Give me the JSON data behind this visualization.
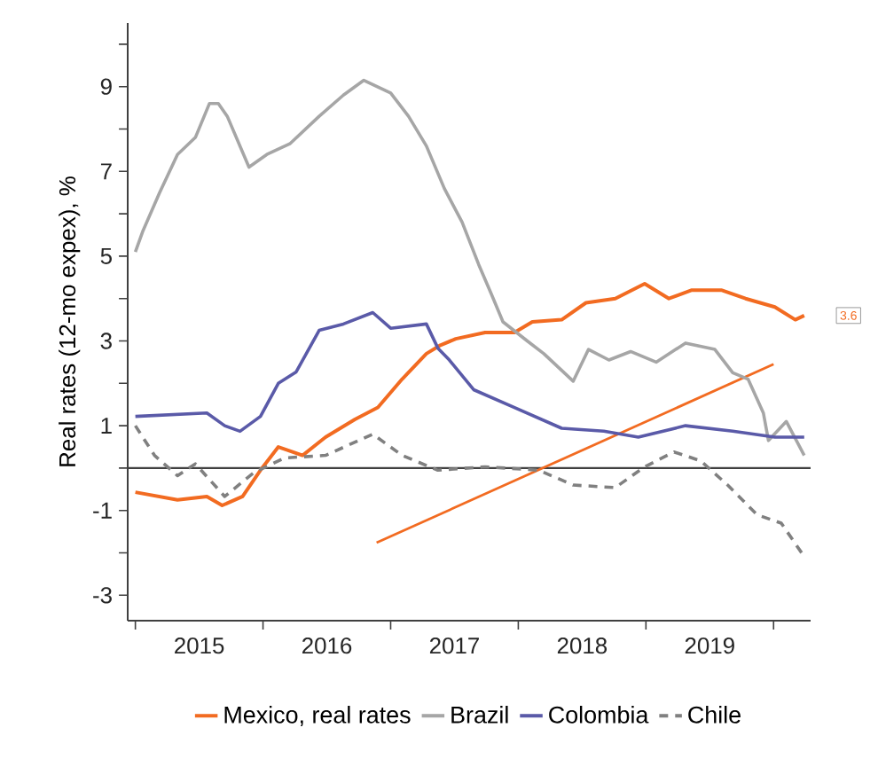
{
  "chart_data": {
    "type": "line",
    "ylabel": "Real rates (12-mo expex), %",
    "xlim": [
      2014.94,
      2020.29
    ],
    "ylim": [
      -3.6,
      10.5
    ],
    "xticks": [
      {
        "value": 2015,
        "label": null
      },
      {
        "value": 2015.5,
        "label": "2015"
      },
      {
        "value": 2016,
        "label": null
      },
      {
        "value": 2016.5,
        "label": "2016"
      },
      {
        "value": 2017,
        "label": null
      },
      {
        "value": 2017.5,
        "label": "2017"
      },
      {
        "value": 2018,
        "label": null
      },
      {
        "value": 2018.5,
        "label": "2018"
      },
      {
        "value": 2019,
        "label": null
      },
      {
        "value": 2019.5,
        "label": "2019"
      },
      {
        "value": 2020,
        "label": null
      }
    ],
    "yticks": [
      -3,
      {
        "value": -2,
        "label": null
      },
      -1,
      {
        "value": 0,
        "label": null
      },
      1,
      {
        "value": 2,
        "label": null
      },
      3,
      {
        "value": 4,
        "label": null
      },
      5,
      {
        "value": 6,
        "label": null
      },
      7,
      {
        "value": 8,
        "label": null
      },
      9,
      {
        "value": 10,
        "label": null
      }
    ],
    "marker": "none",
    "legend": "bottom",
    "ref_lines": [
      {
        "axis": "y",
        "value": 0,
        "color": "#404040"
      }
    ],
    "annotations": [
      {
        "text": "3.6",
        "x": 2020.24,
        "y": 3.6
      }
    ],
    "series": [
      {
        "name": "Mexico, real rates",
        "color": "#f26b21",
        "x": [
          2015.0,
          2015.33,
          2015.56,
          2015.68,
          2015.84,
          2015.98,
          2016.12,
          2016.31,
          2016.49,
          2016.72,
          2016.9,
          2017.09,
          2017.28,
          2017.39,
          2017.51,
          2017.74,
          2017.97,
          2018.11,
          2018.34,
          2018.53,
          2018.76,
          2018.99,
          2019.18,
          2019.36,
          2019.59,
          2019.78,
          2020.01,
          2020.17,
          2020.24
        ],
        "values": [
          -0.57,
          -0.75,
          -0.67,
          -0.88,
          -0.67,
          -0.05,
          0.5,
          0.3,
          0.73,
          1.15,
          1.43,
          2.1,
          2.7,
          2.9,
          3.05,
          3.2,
          3.2,
          3.45,
          3.5,
          3.9,
          4.0,
          4.35,
          4.0,
          4.2,
          4.2,
          4.0,
          3.8,
          3.5,
          3.6
        ]
      },
      {
        "name": "Brazil",
        "color": "#a6a6a6",
        "x": [
          2015.0,
          2015.06,
          2015.19,
          2015.33,
          2015.47,
          2015.58,
          2015.65,
          2015.72,
          2015.89,
          2016.03,
          2016.21,
          2016.44,
          2016.63,
          2016.79,
          2017.0,
          2017.14,
          2017.28,
          2017.42,
          2017.56,
          2017.69,
          2017.79,
          2017.88,
          2018.07,
          2018.2,
          2018.43,
          2018.55,
          2018.71,
          2018.88,
          2019.08,
          2019.31,
          2019.54,
          2019.68,
          2019.8,
          2019.92,
          2019.96,
          2020.1,
          2020.24
        ],
        "values": [
          5.1,
          5.6,
          6.5,
          7.4,
          7.8,
          8.6,
          8.6,
          8.3,
          7.1,
          7.4,
          7.65,
          8.3,
          8.8,
          9.15,
          8.85,
          8.3,
          7.6,
          6.6,
          5.8,
          4.8,
          4.1,
          3.45,
          3.0,
          2.7,
          2.05,
          2.8,
          2.55,
          2.75,
          2.5,
          2.95,
          2.8,
          2.25,
          2.1,
          1.3,
          0.65,
          1.1,
          0.3
        ]
      },
      {
        "name": "Colombia",
        "color": "#5a5aa8",
        "x": [
          2015.0,
          2015.56,
          2015.7,
          2015.82,
          2015.98,
          2016.12,
          2016.26,
          2016.44,
          2016.63,
          2016.86,
          2017.0,
          2017.28,
          2017.37,
          2017.46,
          2017.65,
          2017.97,
          2018.34,
          2018.67,
          2018.94,
          2019.31,
          2019.68,
          2020.01,
          2020.24
        ],
        "values": [
          1.22,
          1.3,
          1.0,
          0.87,
          1.22,
          2.0,
          2.27,
          3.25,
          3.4,
          3.67,
          3.3,
          3.4,
          2.83,
          2.55,
          1.85,
          1.43,
          0.94,
          0.87,
          0.73,
          1.0,
          0.87,
          0.73,
          0.73
        ]
      },
      {
        "name": "Chile",
        "color": "#808080",
        "line_style": "dashed",
        "x": [
          2015.0,
          2015.15,
          2015.33,
          2015.47,
          2015.7,
          2015.93,
          2016.17,
          2016.49,
          2016.86,
          2017.09,
          2017.37,
          2017.74,
          2018.16,
          2018.43,
          2018.76,
          2018.99,
          2019.22,
          2019.43,
          2019.64,
          2019.87,
          2020.06,
          2020.22
        ],
        "values": [
          1.0,
          0.3,
          -0.18,
          0.1,
          -0.67,
          -0.1,
          0.24,
          0.3,
          0.8,
          0.3,
          -0.05,
          0.03,
          -0.05,
          -0.4,
          -0.46,
          0.03,
          0.38,
          0.17,
          -0.4,
          -1.1,
          -1.3,
          -2.0
        ]
      },
      {
        "type": "line",
        "color": "#f26b21",
        "x": [
          2016.89,
          2020.0
        ],
        "values": [
          -1.76,
          2.45
        ]
      }
    ]
  }
}
